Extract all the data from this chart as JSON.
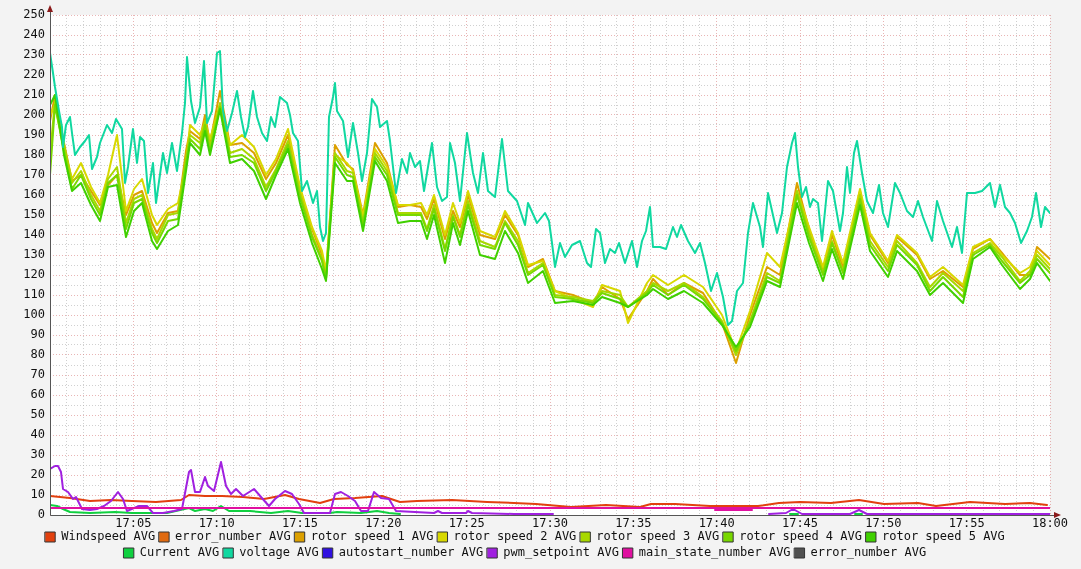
{
  "chart_data": {
    "type": "line",
    "x": [
      17.0,
      17.005,
      17.014,
      17.022,
      17.031,
      17.041,
      17.05,
      17.058,
      17.067,
      17.076,
      17.084,
      17.092,
      17.102,
      17.107,
      17.118,
      17.128,
      17.136,
      17.14,
      17.15,
      17.155,
      17.16,
      17.17,
      17.18,
      17.192,
      17.204,
      17.216,
      17.226,
      17.238,
      17.25,
      17.262,
      17.272,
      17.276,
      17.285,
      17.297,
      17.303,
      17.313,
      17.325,
      17.337,
      17.348,
      17.36,
      17.371,
      17.377,
      17.384,
      17.395,
      17.403,
      17.41,
      17.418,
      17.43,
      17.445,
      17.455,
      17.468,
      17.478,
      17.493,
      17.505,
      17.523,
      17.543,
      17.552,
      17.57,
      17.578,
      17.597,
      17.603,
      17.618,
      17.634,
      17.653,
      17.672,
      17.686,
      17.7,
      17.717,
      17.73,
      17.747,
      17.759,
      17.773,
      17.782,
      17.793,
      17.81,
      17.82,
      17.838,
      17.847,
      17.867,
      17.88,
      17.893,
      17.913,
      17.923,
      17.94,
      17.952,
      17.97,
      17.98,
      17.987,
      18.0
    ],
    "xlim": [
      17,
      18
    ],
    "xticks": [
      {
        "value": 17,
        "label": null
      },
      {
        "value": 17.0167,
        "label": null
      },
      {
        "value": 17.0333,
        "label": null
      },
      {
        "value": 17.05,
        "label": null
      },
      {
        "value": 17.0667,
        "label": null
      },
      {
        "value": 17.0833,
        "label": "17:05"
      },
      {
        "value": 17.1,
        "label": null
      },
      {
        "value": 17.1167,
        "label": null
      },
      {
        "value": 17.1333,
        "label": null
      },
      {
        "value": 17.15,
        "label": null
      },
      {
        "value": 17.1667,
        "label": "17:10"
      },
      {
        "value": 17.1833,
        "label": null
      },
      {
        "value": 17.2,
        "label": null
      },
      {
        "value": 17.2167,
        "label": null
      },
      {
        "value": 17.2333,
        "label": null
      },
      {
        "value": 17.25,
        "label": "17:15"
      },
      {
        "value": 17.2667,
        "label": null
      },
      {
        "value": 17.2833,
        "label": null
      },
      {
        "value": 17.3,
        "label": null
      },
      {
        "value": 17.3167,
        "label": null
      },
      {
        "value": 17.3333,
        "label": "17:20"
      },
      {
        "value": 17.35,
        "label": null
      },
      {
        "value": 17.3667,
        "label": null
      },
      {
        "value": 17.3833,
        "label": null
      },
      {
        "value": 17.4,
        "label": null
      },
      {
        "value": 17.4167,
        "label": "17:25"
      },
      {
        "value": 17.4333,
        "label": null
      },
      {
        "value": 17.45,
        "label": null
      },
      {
        "value": 17.4667,
        "label": null
      },
      {
        "value": 17.4833,
        "label": null
      },
      {
        "value": 17.5,
        "label": "17:30"
      },
      {
        "value": 17.5167,
        "label": null
      },
      {
        "value": 17.5333,
        "label": null
      },
      {
        "value": 17.55,
        "label": null
      },
      {
        "value": 17.5667,
        "label": null
      },
      {
        "value": 17.5833,
        "label": "17:35"
      },
      {
        "value": 17.6,
        "label": null
      },
      {
        "value": 17.6167,
        "label": null
      },
      {
        "value": 17.6333,
        "label": null
      },
      {
        "value": 17.65,
        "label": null
      },
      {
        "value": 17.6667,
        "label": "17:40"
      },
      {
        "value": 17.6833,
        "label": null
      },
      {
        "value": 17.7,
        "label": null
      },
      {
        "value": 17.7167,
        "label": null
      },
      {
        "value": 17.7333,
        "label": null
      },
      {
        "value": 17.75,
        "label": "17:45"
      },
      {
        "value": 17.7667,
        "label": null
      },
      {
        "value": 17.7833,
        "label": null
      },
      {
        "value": 17.8,
        "label": null
      },
      {
        "value": 17.8167,
        "label": null
      },
      {
        "value": 17.8333,
        "label": "17:50"
      },
      {
        "value": 17.85,
        "label": null
      },
      {
        "value": 17.8667,
        "label": null
      },
      {
        "value": 17.8833,
        "label": null
      },
      {
        "value": 17.9,
        "label": null
      },
      {
        "value": 17.9167,
        "label": "17:55"
      },
      {
        "value": 17.9333,
        "label": null
      },
      {
        "value": 17.95,
        "label": null
      },
      {
        "value": 17.9667,
        "label": null
      },
      {
        "value": 17.9833,
        "label": null
      },
      {
        "value": 18,
        "label": "18:00"
      }
    ],
    "ylim": [
      0,
      250
    ],
    "yticks": [
      0,
      {
        "value": 5,
        "label": null
      },
      10,
      {
        "value": 15,
        "label": null
      },
      20,
      {
        "value": 25,
        "label": null
      },
      30,
      {
        "value": 35,
        "label": null
      },
      40,
      {
        "value": 45,
        "label": null
      },
      50,
      {
        "value": 55,
        "label": null
      },
      60,
      {
        "value": 65,
        "label": null
      },
      70,
      {
        "value": 75,
        "label": null
      },
      80,
      {
        "value": 85,
        "label": null
      },
      90,
      {
        "value": 95,
        "label": null
      },
      100,
      {
        "value": 105,
        "label": null
      },
      110,
      {
        "value": 115,
        "label": null
      },
      120,
      {
        "value": 125,
        "label": null
      },
      130,
      {
        "value": 135,
        "label": null
      },
      140,
      {
        "value": 145,
        "label": null
      },
      150,
      {
        "value": 155,
        "label": null
      },
      160,
      {
        "value": 165,
        "label": null
      },
      170,
      {
        "value": 175,
        "label": null
      },
      180,
      {
        "value": 185,
        "label": null
      },
      190,
      {
        "value": 195,
        "label": null
      },
      200,
      {
        "value": 205,
        "label": null
      },
      210,
      {
        "value": 215,
        "label": null
      },
      220,
      {
        "value": 225,
        "label": null
      },
      230,
      {
        "value": 235,
        "label": null
      },
      240,
      {
        "value": 245,
        "label": null
      },
      250
    ],
    "grid": true,
    "legend": "bottom",
    "series": [
      {
        "name": "Windspeed AVG",
        "color": "#e2400e",
        "x": [
          17.0,
          17.02,
          17.04,
          17.061,
          17.082,
          17.106,
          17.131,
          17.139,
          17.155,
          17.172,
          17.193,
          17.214,
          17.235,
          17.249,
          17.27,
          17.284,
          17.305,
          17.332,
          17.35,
          17.367,
          17.402,
          17.437,
          17.464,
          17.486,
          17.521,
          17.556,
          17.59,
          17.601,
          17.625,
          17.66,
          17.681,
          17.708,
          17.729,
          17.75,
          17.781,
          17.809,
          17.834,
          17.868,
          17.886,
          17.92,
          17.955,
          17.98,
          17.997
        ],
        "values": [
          9.5,
          8.5,
          7,
          7.5,
          7,
          6.5,
          7.5,
          10,
          9.5,
          9.5,
          9,
          8,
          10,
          8,
          6,
          8,
          8.5,
          9.5,
          6.5,
          7,
          7.5,
          6.5,
          6,
          5.5,
          4,
          5,
          4,
          5.5,
          5.5,
          4.5,
          4.5,
          4.5,
          6,
          6.5,
          6,
          7.5,
          5.5,
          6,
          4.5,
          6.5,
          5.5,
          6,
          5
        ]
      },
      {
        "name": "error_number AVG",
        "color": "#e06a10",
        "values": [
          null,
          null,
          null,
          null,
          null,
          null,
          null,
          null,
          null,
          null,
          null,
          null,
          null,
          null,
          null,
          null,
          null,
          null,
          null,
          null,
          null,
          null,
          null,
          null,
          null,
          null,
          null,
          null,
          null,
          null,
          null,
          null,
          null,
          null,
          null,
          null,
          null,
          null,
          null,
          null,
          null,
          null,
          null,
          null,
          null,
          null,
          null,
          null,
          null,
          null,
          null,
          null,
          null,
          null,
          null,
          null,
          null,
          null,
          null,
          null,
          null,
          null,
          null,
          null,
          null,
          null,
          null,
          null,
          null,
          null,
          null,
          null,
          null,
          null,
          null,
          null,
          null,
          null,
          null,
          null,
          null,
          null,
          null,
          null,
          null,
          null,
          null,
          null,
          null
        ]
      },
      {
        "name": "rotor speed 1 AVG",
        "color": "#dca000",
        "values": [
          197,
          210,
          186,
          167,
          170,
          162,
          155,
          165,
          170,
          150,
          160,
          162,
          146,
          141,
          151,
          152,
          182,
          192,
          188,
          200,
          186,
          212,
          185,
          186,
          181,
          168,
          176,
          190,
          163,
          143,
          130,
          120,
          185,
          175,
          173,
          150,
          186,
          176,
          154,
          155,
          154,
          148,
          158,
          138,
          152,
          144,
          160,
          140,
          138,
          150,
          140,
          124,
          128,
          112,
          110,
          106,
          114,
          108,
          98,
          112,
          118,
          110,
          116,
          111,
          96,
          76,
          100,
          124,
          120,
          166,
          143,
          122,
          140,
          124,
          162,
          140,
          126,
          139,
          130,
          118,
          122,
          114,
          133,
          138,
          131,
          120,
          120,
          134,
          128
        ]
      },
      {
        "name": "rotor speed 2 AVG",
        "color": "#d8d800",
        "values": [
          200,
          205,
          183,
          168,
          176,
          164,
          156,
          170,
          190,
          152,
          163,
          168,
          150,
          145,
          153,
          156,
          175,
          195,
          190,
          196,
          188,
          205,
          185,
          190,
          184,
          170,
          178,
          193,
          164,
          144,
          132,
          122,
          180,
          176,
          172,
          149,
          183,
          174,
          155,
          155,
          156,
          150,
          160,
          140,
          156,
          146,
          162,
          142,
          139,
          152,
          141,
          125,
          127,
          112,
          108,
          104,
          115,
          112,
          96,
          116,
          120,
          115,
          120,
          114,
          100,
          82,
          102,
          131,
          124,
          162,
          144,
          124,
          142,
          126,
          163,
          141,
          127,
          140,
          131,
          119,
          124,
          115,
          134,
          138,
          130,
          121,
          124,
          132,
          125
        ]
      },
      {
        "name": "rotor speed 3 AVG",
        "color": "#a8d800",
        "values": [
          180,
          207,
          185,
          166,
          172,
          160,
          152,
          168,
          174,
          146,
          158,
          160,
          143,
          138,
          150,
          151,
          178,
          190,
          186,
          197,
          184,
          206,
          181,
          183,
          178,
          164,
          173,
          187,
          161,
          140,
          128,
          118,
          181,
          172,
          171,
          146,
          181,
          172,
          151,
          151,
          151,
          143,
          155,
          133,
          150,
          140,
          157,
          137,
          134,
          147,
          137,
          121,
          126,
          110,
          109,
          107,
          112,
          110,
          104,
          112,
          116,
          112,
          116,
          109,
          97,
          80,
          97,
          121,
          117,
          162,
          141,
          121,
          137,
          122,
          160,
          137,
          124,
          137,
          126,
          114,
          121,
          112,
          131,
          136,
          129,
          117,
          122,
          130,
          123
        ]
      },
      {
        "name": "rotor speed 4 AVG",
        "color": "#78d800",
        "values": [
          170,
          205,
          182,
          163,
          170,
          158,
          150,
          166,
          170,
          143,
          156,
          158,
          141,
          136,
          147,
          148,
          176,
          188,
          183,
          195,
          182,
          204,
          179,
          180,
          176,
          162,
          172,
          185,
          159,
          139,
          127,
          118,
          179,
          170,
          169,
          145,
          179,
          170,
          150,
          150,
          150,
          142,
          153,
          132,
          149,
          139,
          155,
          135,
          133,
          146,
          135,
          120,
          125,
          109,
          108,
          106,
          111,
          108,
          104,
          111,
          115,
          110,
          115,
          108,
          96,
          82,
          96,
          119,
          116,
          160,
          139,
          120,
          136,
          121,
          158,
          135,
          122,
          135,
          125,
          112,
          119,
          109,
          130,
          135,
          127,
          116,
          120,
          128,
          121
        ]
      },
      {
        "name": "rotor speed 5 AVG",
        "color": "#40d000",
        "values": [
          205,
          210,
          180,
          162,
          166,
          155,
          147,
          164,
          165,
          139,
          152,
          156,
          137,
          133,
          142,
          145,
          172,
          186,
          180,
          192,
          180,
          203,
          176,
          178,
          172,
          158,
          170,
          183,
          156,
          136,
          123,
          117,
          176,
          167,
          167,
          142,
          177,
          167,
          146,
          147,
          147,
          138,
          150,
          126,
          146,
          135,
          152,
          130,
          128,
          142,
          131,
          116,
          122,
          106,
          107,
          105,
          109,
          106,
          104,
          110,
          113,
          108,
          112,
          106,
          95,
          84,
          94,
          117,
          114,
          156,
          136,
          117,
          133,
          118,
          155,
          132,
          119,
          132,
          122,
          110,
          116,
          106,
          128,
          134,
          125,
          113,
          118,
          126,
          117
        ]
      },
      {
        "name": "Current AVG",
        "color": "#10d040",
        "x": [
          17.0,
          17.007,
          17.013,
          17.02,
          17.04,
          17.065,
          17.082,
          17.117,
          17.139,
          17.145,
          17.155,
          17.163,
          17.171,
          17.179,
          17.2,
          17.221,
          17.238,
          17.252,
          17.28,
          17.287,
          17.311,
          17.327,
          17.339,
          17.35,
          17.351,
          17.74,
          17.748,
          17.749,
          17.805,
          17.812
        ],
        "values": [
          5,
          4.5,
          3,
          1.5,
          1,
          1.5,
          1,
          1,
          3.5,
          2,
          3,
          2,
          4.5,
          2,
          2,
          1,
          2,
          1,
          1,
          1.5,
          1,
          2,
          1,
          0.5,
          null,
          0.5,
          0.5,
          null,
          0.5,
          0.5
        ]
      },
      {
        "name": "voltage AVG",
        "color": "#10d8a0",
        "x": [
          17.0,
          17.003,
          17.005,
          17.009,
          17.012,
          17.013,
          17.016,
          17.02,
          17.022,
          17.025,
          17.03,
          17.035,
          17.039,
          17.042,
          17.047,
          17.05,
          17.057,
          17.062,
          17.066,
          17.072,
          17.075,
          17.078,
          17.083,
          17.087,
          17.09,
          17.094,
          17.098,
          17.103,
          17.106,
          17.113,
          17.117,
          17.122,
          17.127,
          17.132,
          17.135,
          17.137,
          17.141,
          17.145,
          17.15,
          17.154,
          17.157,
          17.162,
          17.167,
          17.17,
          17.173,
          17.177,
          17.182,
          17.187,
          17.191,
          17.195,
          17.198,
          17.203,
          17.207,
          17.212,
          17.217,
          17.221,
          17.225,
          17.23,
          17.237,
          17.24,
          17.243,
          17.248,
          17.252,
          17.257,
          17.263,
          17.267,
          17.27,
          17.273,
          17.276,
          17.279,
          17.283,
          17.285,
          17.287,
          17.293,
          17.298,
          17.303,
          17.308,
          17.312,
          17.317,
          17.322,
          17.327,
          17.33,
          17.337,
          17.34,
          17.346,
          17.352,
          17.357,
          17.36,
          17.365,
          17.37,
          17.374,
          17.382,
          17.387,
          17.392,
          17.397,
          17.4,
          17.405,
          17.41,
          17.417,
          17.423,
          17.428,
          17.433,
          17.438,
          17.445,
          17.452,
          17.458,
          17.467,
          17.475,
          17.478,
          17.487,
          17.495,
          17.499,
          17.502,
          17.505,
          17.51,
          17.515,
          17.522,
          17.53,
          17.537,
          17.541,
          17.546,
          17.55,
          17.555,
          17.56,
          17.565,
          17.569,
          17.575,
          17.582,
          17.587,
          17.592,
          17.596,
          17.6,
          17.603,
          17.61,
          17.616,
          17.623,
          17.627,
          17.631,
          17.638,
          17.645,
          17.65,
          17.655,
          17.661,
          17.667,
          17.673,
          17.678,
          17.682,
          17.687,
          17.693,
          17.698,
          17.703,
          17.71,
          17.713,
          17.718,
          17.727,
          17.732,
          17.737,
          17.742,
          17.745,
          17.748,
          17.752,
          17.756,
          17.76,
          17.763,
          17.768,
          17.772,
          17.778,
          17.783,
          17.79,
          17.793,
          17.797,
          17.8,
          17.804,
          17.807,
          17.812,
          17.817,
          17.823,
          17.829,
          17.833,
          17.838,
          17.845,
          17.85,
          17.857,
          17.863,
          17.868,
          17.873,
          17.882,
          17.887,
          17.893,
          17.902,
          17.907,
          17.912,
          17.917,
          17.925,
          17.932,
          17.94,
          17.945,
          17.95,
          17.955,
          17.96,
          17.965,
          17.971,
          17.977,
          17.982,
          17.986,
          17.991,
          17.995,
          18.0
        ],
        "values": [
          231,
          221,
          214,
          202,
          194,
          184,
          195,
          199,
          191,
          180,
          184,
          187,
          190,
          173,
          179,
          186,
          195,
          191,
          198,
          193,
          166,
          174,
          193,
          176,
          189,
          187,
          161,
          176,
          156,
          181,
          171,
          186,
          172,
          191,
          206,
          229,
          207,
          196,
          204,
          227,
          196,
          202,
          231,
          232,
          202,
          192,
          201,
          212,
          199,
          189,
          194,
          212,
          199,
          191,
          187,
          199,
          194,
          209,
          206,
          200,
          191,
          187,
          162,
          167,
          156,
          162,
          144,
          137,
          141,
          199,
          209,
          216,
          202,
          197,
          179,
          196,
          181,
          167,
          181,
          208,
          204,
          194,
          197,
          187,
          161,
          178,
          171,
          181,
          174,
          177,
          162,
          186,
          164,
          157,
          159,
          186,
          176,
          157,
          191,
          171,
          161,
          181,
          162,
          159,
          188,
          162,
          157,
          145,
          156,
          146,
          151,
          147,
          136,
          124,
          136,
          129,
          135,
          137,
          126,
          124,
          143,
          141,
          126,
          133,
          131,
          136,
          126,
          137,
          124,
          137,
          142,
          154,
          134,
          134,
          133,
          144,
          139,
          145,
          137,
          131,
          136,
          126,
          112,
          121,
          109,
          95,
          97,
          112,
          116,
          141,
          156,
          144,
          134,
          161,
          141,
          151,
          174,
          186,
          191,
          174,
          159,
          164,
          154,
          158,
          156,
          137,
          167,
          162,
          142,
          151,
          174,
          161,
          181,
          187,
          171,
          157,
          151,
          165,
          151,
          144,
          166,
          161,
          152,
          149,
          157,
          149,
          137,
          157,
          147,
          134,
          144,
          131,
          161,
          161,
          162,
          166,
          154,
          165,
          154,
          151,
          146,
          136,
          142,
          149,
          161,
          144,
          154,
          151
        ]
      },
      {
        "name": "autostart_number AVG",
        "color": "#3010e0",
        "values": [
          null,
          null,
          null,
          null,
          null,
          null,
          null,
          null,
          null,
          null,
          null,
          null,
          null,
          null,
          null,
          null,
          null,
          null,
          null,
          null,
          null,
          null,
          null,
          null,
          null,
          null,
          null,
          null,
          null,
          null,
          null,
          null,
          null,
          null,
          null,
          null,
          null,
          null,
          null,
          null,
          null,
          null,
          null,
          null,
          null,
          null,
          null,
          null,
          null,
          null,
          null,
          null,
          null,
          null,
          null,
          null,
          null,
          null,
          null,
          null,
          null,
          null,
          null,
          null,
          null,
          null,
          null,
          null,
          null,
          null,
          null,
          null,
          null,
          null,
          null,
          null,
          null,
          null,
          null,
          null,
          null,
          null,
          null,
          null,
          null,
          null,
          null,
          null,
          null
        ]
      },
      {
        "name": "pwm_setpoint AVG",
        "color": "#a020e0",
        "x": [
          17.0,
          17.005,
          17.008,
          17.011,
          17.013,
          17.018,
          17.023,
          17.026,
          17.032,
          17.04,
          17.047,
          17.054,
          17.061,
          17.068,
          17.073,
          17.077,
          17.089,
          17.097,
          17.103,
          17.113,
          17.124,
          17.132,
          17.139,
          17.141,
          17.145,
          17.15,
          17.155,
          17.158,
          17.164,
          17.171,
          17.176,
          17.181,
          17.186,
          17.193,
          17.204,
          17.211,
          17.219,
          17.225,
          17.235,
          17.242,
          17.249,
          17.254,
          17.28,
          17.285,
          17.291,
          17.298,
          17.305,
          17.311,
          17.318,
          17.324,
          17.331,
          17.339,
          17.346,
          17.384,
          17.388,
          17.392,
          17.416,
          17.418,
          17.422,
          17.464,
          17.503,
          17.504,
          17.719,
          17.736,
          17.743,
          17.752,
          17.8,
          17.809,
          17.817,
          18.0
        ],
        "values": [
          23,
          24.5,
          24.5,
          21.5,
          13,
          11.5,
          8,
          9,
          3,
          2.5,
          3,
          4.5,
          7,
          11.5,
          8,
          2,
          4.5,
          4.5,
          1,
          1,
          2,
          3,
          21.5,
          22.5,
          11.5,
          11.5,
          19,
          14.5,
          12,
          26.5,
          14.5,
          10.5,
          13,
          9.5,
          13,
          9,
          4.5,
          8,
          12,
          10.5,
          5.5,
          1,
          1,
          10.5,
          11.5,
          9.5,
          7,
          2,
          2,
          11.5,
          8.5,
          8,
          2,
          1,
          2,
          1,
          1,
          2,
          1,
          0.5,
          0.5,
          null,
          0.5,
          1,
          3,
          0.5,
          0.5,
          2.5,
          0.5,
          0.5
        ]
      },
      {
        "name": "main_state_number AVG",
        "color": "#e010a0",
        "x": [
          17.0,
          18.0
        ],
        "values": [
          3.5,
          3.5
        ]
      },
      {
        "name": "error_number AVG",
        "color": "#505050",
        "values": [
          null,
          null,
          null,
          null,
          null,
          null,
          null,
          null,
          null,
          null,
          null,
          null,
          null,
          null,
          null,
          null,
          null,
          null,
          null,
          null,
          null,
          null,
          null,
          null,
          null,
          null,
          null,
          null,
          null,
          null,
          null,
          null,
          null,
          null,
          null,
          null,
          null,
          null,
          null,
          null,
          null,
          null,
          null,
          null,
          null,
          null,
          null,
          null,
          null,
          null,
          null,
          null,
          null,
          null,
          null,
          null,
          null,
          null,
          null,
          null,
          null,
          null,
          null,
          null,
          null,
          null,
          null,
          null,
          null,
          null,
          null,
          null,
          null,
          null,
          null,
          null,
          null,
          null,
          null,
          null,
          null,
          null,
          null,
          null,
          null,
          null,
          null,
          null,
          null
        ]
      },
      {
        "color": "#e010a0",
        "x": [
          17.665,
          17.702
        ],
        "values": [
          2.5,
          2.5
        ]
      }
    ]
  }
}
